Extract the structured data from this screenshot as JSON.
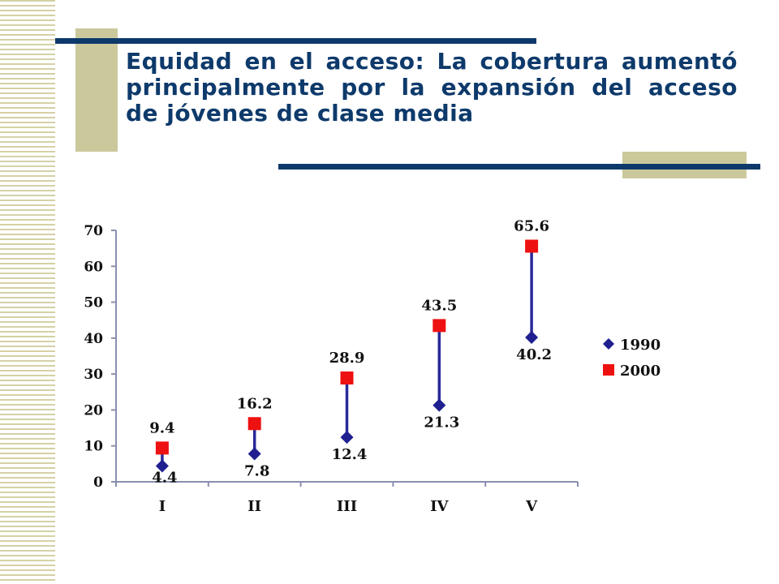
{
  "slide": {
    "title": "Equidad en el acceso: La cobertura aumentó principalmente por la expansión del acceso de jóvenes de clase media"
  },
  "colors": {
    "navy": "#0e3a6b",
    "tan": "#cbc99c",
    "series_1990": "#1f1f8f",
    "series_2000": "#ee1111"
  },
  "chart_data": {
    "type": "scatter",
    "categories": [
      "I",
      "II",
      "III",
      "IV",
      "V"
    ],
    "series": [
      {
        "name": "1990",
        "values": [
          4.4,
          7.8,
          12.4,
          21.3,
          40.2
        ],
        "marker": "diamond",
        "color": "#1f1f8f"
      },
      {
        "name": "2000",
        "values": [
          9.4,
          16.2,
          28.9,
          43.5,
          65.6
        ],
        "marker": "square",
        "color": "#ee1111"
      }
    ],
    "value_labels_1990": [
      "4.4",
      "7.8",
      "12.4",
      "21.3",
      "40.2"
    ],
    "value_labels_2000": [
      "9.4",
      "16.2",
      "28.9",
      "43.5",
      "65.6"
    ],
    "y_ticks": [
      0,
      10,
      20,
      30,
      40,
      50,
      60,
      70
    ],
    "ylim": [
      0,
      70
    ],
    "connector_lines": true,
    "legend_position": "right",
    "grid": false
  }
}
